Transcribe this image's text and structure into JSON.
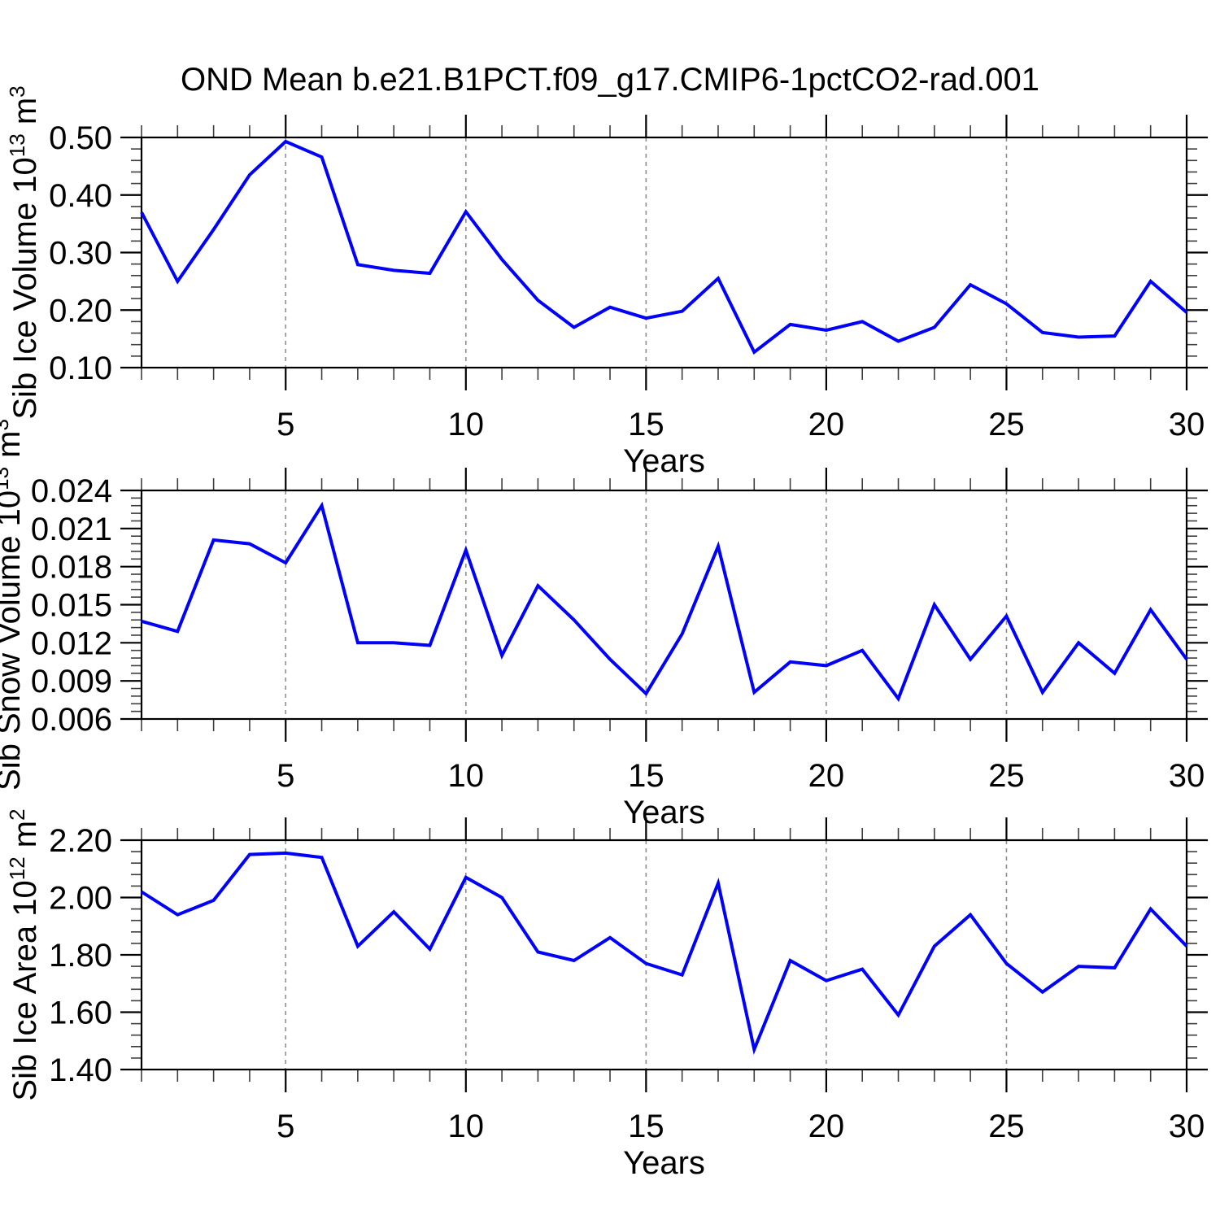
{
  "title": "OND Mean b.e21.B1PCT.f09_g17.CMIP6-1pctCO2-rad.001",
  "colors": {
    "line": "#0000ff",
    "axis": "#000000",
    "major_tick": "#000000",
    "minor_tick": "#3d3d3d",
    "grid": "#8f8f8f",
    "text": "#000000",
    "background": "#ffffff"
  },
  "chart_data": [
    {
      "type": "line",
      "name": "sib-ice-volume",
      "ylabel": "Sib Ice Volume 10^13 m^3",
      "ylabel_parts": [
        {
          "text": "Sib Ice Volume 10",
          "sup": false
        },
        {
          "text": "13",
          "sup": true
        },
        {
          "text": " m",
          "sup": false
        },
        {
          "text": "3",
          "sup": true
        }
      ],
      "xlabel": "Years",
      "xlim": [
        1,
        30
      ],
      "ylim": [
        0.1,
        0.5
      ],
      "x": [
        1,
        2,
        3,
        4,
        5,
        6,
        7,
        8,
        9,
        10,
        11,
        12,
        13,
        14,
        15,
        16,
        17,
        18,
        19,
        20,
        21,
        22,
        23,
        24,
        25,
        26,
        27,
        28,
        29,
        30
      ],
      "values": [
        0.37,
        0.25,
        0.34,
        0.435,
        0.493,
        0.466,
        0.279,
        0.269,
        0.264,
        0.371,
        0.288,
        0.217,
        0.17,
        0.205,
        0.186,
        0.198,
        0.255,
        0.127,
        0.175,
        0.165,
        0.18,
        0.146,
        0.17,
        0.244,
        0.211,
        0.161,
        0.153,
        0.155,
        0.25,
        0.196
      ],
      "yticks": [
        0.1,
        0.2,
        0.3,
        0.4,
        0.5
      ],
      "ytick_labels": [
        "0.10",
        "0.20",
        "0.30",
        "0.40",
        "0.50"
      ],
      "yminor_step": 0.02,
      "xticks": [
        5,
        10,
        15,
        20,
        25,
        30
      ],
      "xtick_labels": [
        "5",
        "10",
        "15",
        "20",
        "25",
        "30"
      ],
      "xminor_step": 1,
      "grid_x": [
        5,
        10,
        15,
        20,
        25
      ]
    },
    {
      "type": "line",
      "name": "sib-snow-volume",
      "ylabel": "Sib Snow Volume 10^13 m^3",
      "ylabel_parts": [
        {
          "text": "Sib Snow Volume 10",
          "sup": false
        },
        {
          "text": "13",
          "sup": true
        },
        {
          "text": " m",
          "sup": false
        },
        {
          "text": "3",
          "sup": true
        }
      ],
      "xlabel": "Years",
      "xlim": [
        1,
        30
      ],
      "ylim": [
        0.006,
        0.024
      ],
      "x": [
        1,
        2,
        3,
        4,
        5,
        6,
        7,
        8,
        9,
        10,
        11,
        12,
        13,
        14,
        15,
        16,
        17,
        18,
        19,
        20,
        21,
        22,
        23,
        24,
        25,
        26,
        27,
        28,
        29,
        30
      ],
      "values": [
        0.0137,
        0.0129,
        0.0201,
        0.0198,
        0.0183,
        0.0228,
        0.012,
        0.012,
        0.0118,
        0.0193,
        0.011,
        0.0165,
        0.0138,
        0.0107,
        0.008,
        0.0127,
        0.0196,
        0.0081,
        0.0105,
        0.0102,
        0.0114,
        0.0076,
        0.015,
        0.0107,
        0.0141,
        0.0081,
        0.012,
        0.0096,
        0.0146,
        0.0107
      ],
      "yticks": [
        0.006,
        0.009,
        0.012,
        0.015,
        0.018,
        0.021,
        0.024
      ],
      "ytick_labels": [
        "0.006",
        "0.009",
        "0.012",
        "0.015",
        "0.018",
        "0.021",
        "0.024"
      ],
      "yminor_step": 0.0006,
      "xticks": [
        5,
        10,
        15,
        20,
        25,
        30
      ],
      "xtick_labels": [
        "5",
        "10",
        "15",
        "20",
        "25",
        "30"
      ],
      "xminor_step": 1,
      "grid_x": [
        5,
        10,
        15,
        20,
        25
      ]
    },
    {
      "type": "line",
      "name": "sib-ice-area",
      "ylabel": "Sib Ice Area 10^12 m^2",
      "ylabel_parts": [
        {
          "text": "Sib Ice Area 10",
          "sup": false
        },
        {
          "text": "12",
          "sup": true
        },
        {
          "text": " m",
          "sup": false
        },
        {
          "text": "2",
          "sup": true
        }
      ],
      "xlabel": "Years",
      "xlim": [
        1,
        30
      ],
      "ylim": [
        1.4,
        2.2
      ],
      "x": [
        1,
        2,
        3,
        4,
        5,
        6,
        7,
        8,
        9,
        10,
        11,
        12,
        13,
        14,
        15,
        16,
        17,
        18,
        19,
        20,
        21,
        22,
        23,
        24,
        25,
        26,
        27,
        28,
        29,
        30
      ],
      "values": [
        2.02,
        1.94,
        1.99,
        2.15,
        2.155,
        2.14,
        1.83,
        1.95,
        1.82,
        2.07,
        2.0,
        1.81,
        1.78,
        1.86,
        1.77,
        1.73,
        2.05,
        1.47,
        1.78,
        1.71,
        1.75,
        1.59,
        1.83,
        1.94,
        1.77,
        1.67,
        1.76,
        1.755,
        1.96,
        1.83
      ],
      "yticks": [
        1.4,
        1.6,
        1.8,
        2.0,
        2.2
      ],
      "ytick_labels": [
        "1.40",
        "1.60",
        "1.80",
        "2.00",
        "2.20"
      ],
      "yminor_step": 0.04,
      "xticks": [
        5,
        10,
        15,
        20,
        25,
        30
      ],
      "xtick_labels": [
        "5",
        "10",
        "15",
        "20",
        "25",
        "30"
      ],
      "xminor_step": 1,
      "grid_x": [
        5,
        10,
        15,
        20,
        25
      ]
    }
  ]
}
